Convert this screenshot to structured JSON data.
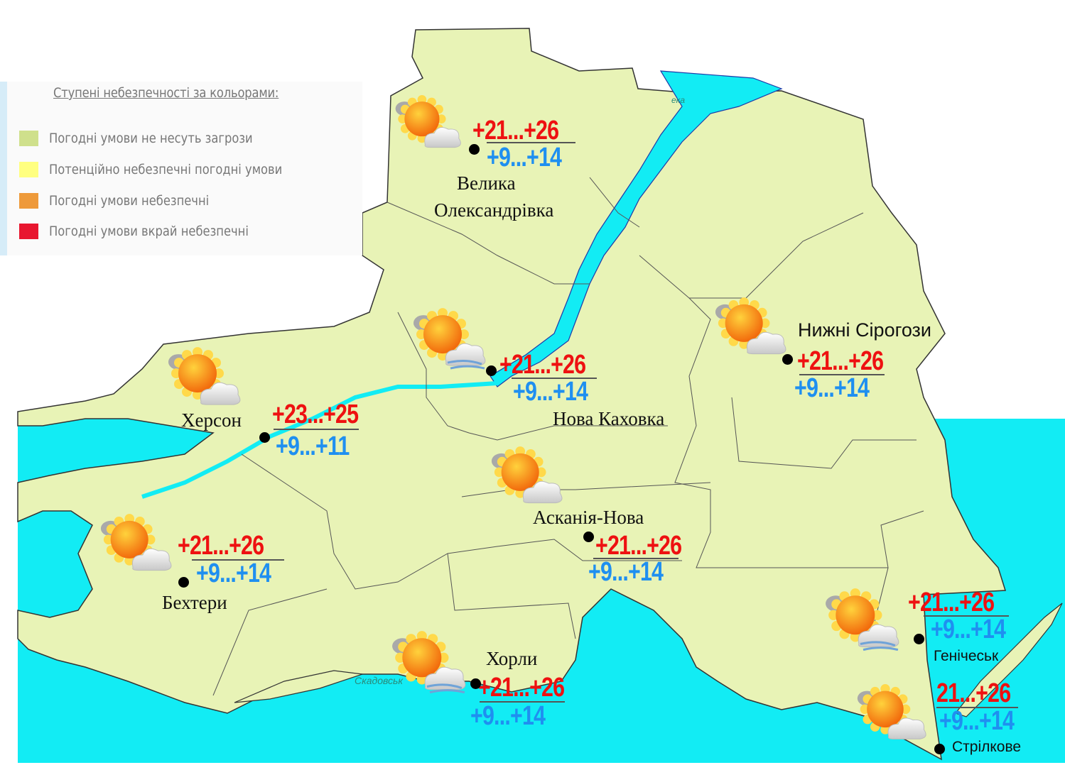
{
  "colors": {
    "land": "#e8f3b6",
    "sea": "#12ecf4",
    "border": "#444444",
    "high_temp": "#ee1111",
    "low_temp": "#1f8ff0"
  },
  "legend": {
    "title": "Ступені небезпечності за кольорами:",
    "items": [
      {
        "label": "Погодні умови не несуть загрози",
        "color": "#cfe08c"
      },
      {
        "label": "Потенційно небезпечні погодні умови",
        "color": "#ffff80"
      },
      {
        "label": "Погодні умови небезпечні",
        "color": "#ee9a3a"
      },
      {
        "label": "Погодні умови вкрай небезпечні",
        "color": "#e8162f"
      }
    ]
  },
  "map_labels": {
    "reservoir_fragment": "ека",
    "skadovsk": "Скадовськ"
  },
  "cities": [
    {
      "name": "Велика Олександрівка",
      "name_lines": [
        "Велика",
        "Олександрівка"
      ],
      "high": "+21...+26",
      "low": "+9...+14",
      "icon": "sun-behind-cloud-icon"
    },
    {
      "name": "Нова Каховка",
      "high": "+21...+26",
      "low": "+9...+14",
      "icon": "sun-cloud-wind-icon"
    },
    {
      "name": "Нижні Сірогози",
      "high": "+21...+26",
      "low": "+9...+14",
      "icon": "sun-behind-cloud-icon"
    },
    {
      "name": "Херсон",
      "high": "+23...+25",
      "low": "+9...+11",
      "icon": "sun-behind-cloud-icon"
    },
    {
      "name": "Асканія-Нова",
      "high": "+21...+26",
      "low": "+9...+14",
      "icon": "sun-behind-cloud-icon"
    },
    {
      "name": "Бехтери",
      "high": "+21...+26",
      "low": "+9...+14",
      "icon": "sun-behind-cloud-icon"
    },
    {
      "name": "Хорли",
      "high": "+21...+26",
      "low": "+9...+14",
      "icon": "sun-cloud-wind-icon"
    },
    {
      "name": "Генічеськ",
      "high": "+21...+26",
      "low": "+9...+14",
      "icon": "sun-cloud-wind-icon"
    },
    {
      "name": "Стрілкове",
      "high": "21...+26",
      "low": "+9...+14",
      "icon": "sun-behind-cloud-icon"
    }
  ]
}
